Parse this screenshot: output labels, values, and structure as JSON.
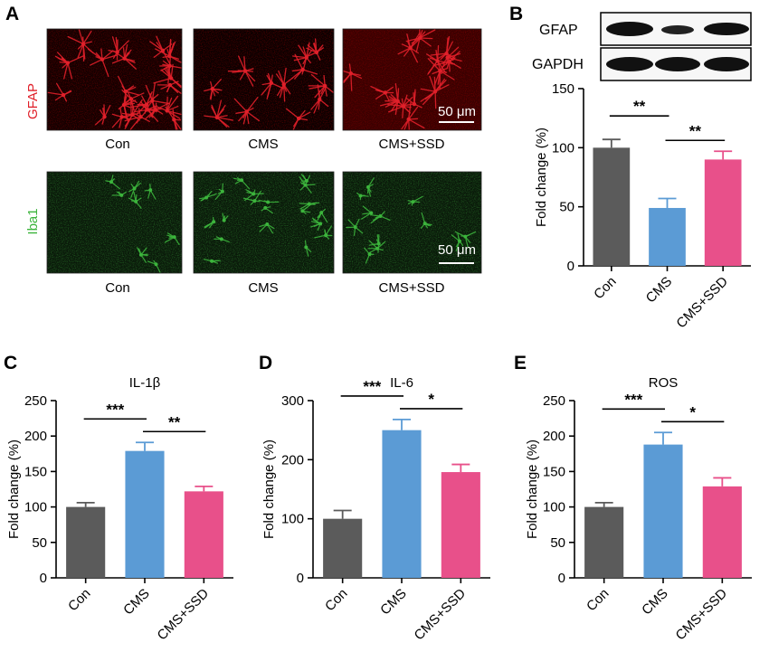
{
  "panels": {
    "A": {
      "letter": "A",
      "row1_stain": "GFAP",
      "row2_stain": "Iba1",
      "groups": [
        "Con",
        "CMS",
        "CMS+SSD"
      ],
      "scalebar": "50 μm"
    },
    "B": {
      "letter": "B",
      "blot_labels": [
        "GFAP",
        "GAPDH"
      ]
    },
    "C": {
      "letter": "C"
    },
    "D": {
      "letter": "D"
    },
    "E": {
      "letter": "E"
    }
  },
  "colors": {
    "Con": "#5b5b5b",
    "CMS": "#5b9bd5",
    "CMS+SSD": "#e8508a",
    "GFAP_stain": "#e0202a",
    "Iba1_stain": "#3cb43c"
  },
  "chart_data": [
    {
      "id": "B",
      "type": "bar",
      "title": "",
      "ylabel": "Fold change (%)",
      "categories": [
        "Con",
        "CMS",
        "CMS+SSD"
      ],
      "values": [
        100,
        49,
        90
      ],
      "errors": [
        7,
        8,
        7
      ],
      "ylim": [
        0,
        150
      ],
      "yticks": [
        0,
        50,
        100,
        150
      ],
      "significance": [
        {
          "from": 0,
          "to": 1,
          "label": "**"
        },
        {
          "from": 1,
          "to": 2,
          "label": "**"
        }
      ]
    },
    {
      "id": "C",
      "type": "bar",
      "title": "IL-1β",
      "ylabel": "Fold change (%)",
      "categories": [
        "Con",
        "CMS",
        "CMS+SSD"
      ],
      "values": [
        100,
        179,
        122
      ],
      "errors": [
        6,
        12,
        7
      ],
      "ylim": [
        0,
        250
      ],
      "yticks": [
        0,
        50,
        100,
        150,
        200,
        250
      ],
      "significance": [
        {
          "from": 0,
          "to": 1,
          "label": "***"
        },
        {
          "from": 1,
          "to": 2,
          "label": "**"
        }
      ]
    },
    {
      "id": "D",
      "type": "bar",
      "title": "IL-6",
      "ylabel": "Fold change (%)",
      "categories": [
        "Con",
        "CMS",
        "CMS+SSD"
      ],
      "values": [
        100,
        250,
        179
      ],
      "errors": [
        14,
        18,
        13
      ],
      "ylim": [
        0,
        300
      ],
      "yticks": [
        0,
        100,
        200,
        300
      ],
      "significance": [
        {
          "from": 0,
          "to": 1,
          "label": "***"
        },
        {
          "from": 1,
          "to": 2,
          "label": "*"
        }
      ]
    },
    {
      "id": "E",
      "type": "bar",
      "title": "ROS",
      "ylabel": "Fold change (%)",
      "categories": [
        "Con",
        "CMS",
        "CMS+SSD"
      ],
      "values": [
        100,
        188,
        129
      ],
      "errors": [
        6,
        17,
        12
      ],
      "ylim": [
        0,
        250
      ],
      "yticks": [
        0,
        50,
        100,
        150,
        200,
        250
      ],
      "significance": [
        {
          "from": 0,
          "to": 1,
          "label": "***"
        },
        {
          "from": 1,
          "to": 2,
          "label": "*"
        }
      ]
    }
  ]
}
